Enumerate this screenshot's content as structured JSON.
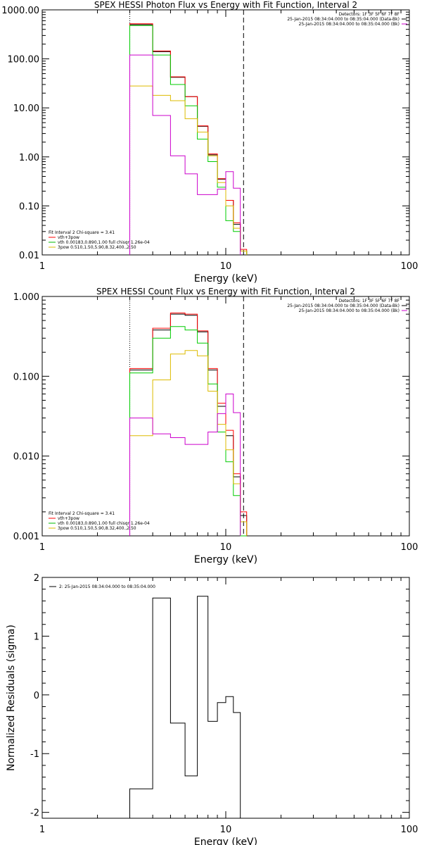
{
  "chart_data": [
    {
      "type": "line",
      "title": "SPEX HESSI Photon Flux vs Energy with Fit Function, Interval 2",
      "xlabel": "Energy (keV)",
      "ylabel": "",
      "xscale": "log",
      "yscale": "log",
      "xlim": [
        1,
        100
      ],
      "ylim": [
        0.01,
        1000
      ],
      "xticks": [
        "1",
        "10",
        "100"
      ],
      "yticks": [
        "0.01",
        "0.10",
        "1.00",
        "10.00",
        "100.00",
        "1000.00"
      ],
      "vlines": [
        {
          "x": 3,
          "style": "dotted",
          "color": "#000000"
        },
        {
          "x": 12.5,
          "style": "dashed",
          "color": "#000000"
        }
      ],
      "info_right": [
        {
          "text": "Detectors: 1F 3F 5F 6F 7F 8F",
          "color": "#000000"
        },
        {
          "text": "25-Jan-2015 08:34:04.000 to 08:35:04.000 (Data-Bk)",
          "color": "#000000"
        },
        {
          "text": "25-Jan-2015 08:34:04.000 to 08:35:04.000 (Bk)",
          "color": "#cc00cc"
        }
      ],
      "info_left": [
        {
          "text": "Fit Interval 2   Chi-square = 3.41",
          "color": "#000000"
        },
        {
          "text": "vth+3pow",
          "color": "#ff0000"
        },
        {
          "text": "vth 0.00183,0.890,1.00  full chisqr 1.26e-04",
          "color": "#00bb00"
        },
        {
          "text": "3pow 0.510,1.50,5.90,8.32,400.,2.50",
          "color": "#ddbb00"
        }
      ],
      "edges": [
        3.0,
        4.0,
        5.0,
        6.0,
        7.0,
        8.0,
        9.0,
        10.0,
        11.0,
        12.0,
        13.0
      ],
      "series": [
        {
          "color": "#000000",
          "values": [
            500,
            140,
            42,
            17,
            4.2,
            1.1,
            0.35,
            0.13,
            0.042,
            0.012
          ]
        },
        {
          "color": "#ff0000",
          "values": [
            520,
            145,
            43,
            17,
            4.3,
            1.15,
            0.36,
            0.13,
            0.045,
            0.013
          ]
        },
        {
          "color": "#00cc00",
          "values": [
            480,
            120,
            30,
            11,
            2.3,
            0.8,
            0.24,
            0.05,
            0.03,
            0.012
          ]
        },
        {
          "color": "#ddbb00",
          "values": [
            28,
            18,
            14,
            6,
            3.2,
            1.05,
            0.3,
            0.1,
            0.035,
            0.012
          ]
        },
        {
          "color": "#cc00cc",
          "values": [
            120,
            7,
            1.05,
            0.45,
            0.17,
            0.17,
            0.22,
            0.5,
            0.23
          ]
        }
      ]
    },
    {
      "type": "line",
      "title": "SPEX HESSI Count Flux vs Energy with Fit Function, Interval 2",
      "xlabel": "Energy (keV)",
      "ylabel": "",
      "xscale": "log",
      "yscale": "log",
      "xlim": [
        1,
        100
      ],
      "ylim": [
        0.001,
        1
      ],
      "xticks": [
        "1",
        "10",
        "100"
      ],
      "yticks": [
        "0.001",
        "0.010",
        "0.100",
        "1.000"
      ],
      "vlines": [
        {
          "x": 3,
          "style": "dotted",
          "color": "#000000"
        },
        {
          "x": 12.5,
          "style": "dashed",
          "color": "#000000"
        }
      ],
      "info_right": [
        {
          "text": "Detectors: 1F 3F 5F 6F 7F 8F",
          "color": "#000000"
        },
        {
          "text": "25-Jan-2015 08:34:04.000 to 08:35:04.000 (Data-Bk)",
          "color": "#000000"
        },
        {
          "text": "25-Jan-2015 08:34:04.000 to 08:35:04.000 (Bk)",
          "color": "#cc00cc"
        }
      ],
      "info_left": [
        {
          "text": "Fit Interval 2   Chi-square = 3.41",
          "color": "#000000"
        },
        {
          "text": "vth+3pow",
          "color": "#ff0000"
        },
        {
          "text": "vth 0.00183,0.890,1.00  full chisqr 1.26e-04",
          "color": "#00bb00"
        },
        {
          "text": "3pow 0.510,1.50,5.90,8.32,400.,2.50",
          "color": "#ddbb00"
        }
      ],
      "edges": [
        3.0,
        4.0,
        5.0,
        6.0,
        7.0,
        8.0,
        9.0,
        10.0,
        11.0,
        12.0,
        13.0
      ],
      "series": [
        {
          "color": "#000000",
          "values": [
            0.12,
            0.38,
            0.6,
            0.58,
            0.36,
            0.12,
            0.042,
            0.018,
            0.0055,
            0.0018
          ]
        },
        {
          "color": "#ff0000",
          "values": [
            0.125,
            0.4,
            0.62,
            0.6,
            0.37,
            0.125,
            0.046,
            0.021,
            0.006,
            0.002
          ]
        },
        {
          "color": "#00cc00",
          "values": [
            0.11,
            0.3,
            0.42,
            0.38,
            0.26,
            0.08,
            0.02,
            0.0085,
            0.0032,
            0.001
          ]
        },
        {
          "color": "#ddbb00",
          "values": [
            0.018,
            0.09,
            0.19,
            0.21,
            0.18,
            0.065,
            0.025,
            0.012,
            0.0045,
            0.0015
          ]
        },
        {
          "color": "#cc00cc",
          "values": [
            0.03,
            0.019,
            0.017,
            0.014,
            0.014,
            0.02,
            0.034,
            0.06,
            0.035
          ]
        }
      ]
    },
    {
      "type": "line",
      "title": "",
      "xlabel": "Energy (keV)",
      "ylabel": "Normalized Residuals (sigma)",
      "xscale": "log",
      "yscale": "linear",
      "xlim": [
        1,
        100
      ],
      "ylim": [
        -2.1,
        2.0
      ],
      "xticks": [
        "1",
        "10",
        "100"
      ],
      "yticks": [
        "-2",
        "-1",
        "0",
        "1",
        "2"
      ],
      "legend": {
        "text": "2: 25-Jan-2015 08:34:04.000 to 08:35:04.000",
        "color": "#000000"
      },
      "edges": [
        3.0,
        4.0,
        5.0,
        6.0,
        7.0,
        8.0,
        9.0,
        10.0,
        11.0,
        12.0
      ],
      "series": [
        {
          "color": "#000000",
          "values": [
            -1.6,
            1.65,
            -0.48,
            -1.38,
            1.68,
            -0.45,
            -0.13,
            -0.03,
            -0.3
          ]
        }
      ]
    }
  ]
}
